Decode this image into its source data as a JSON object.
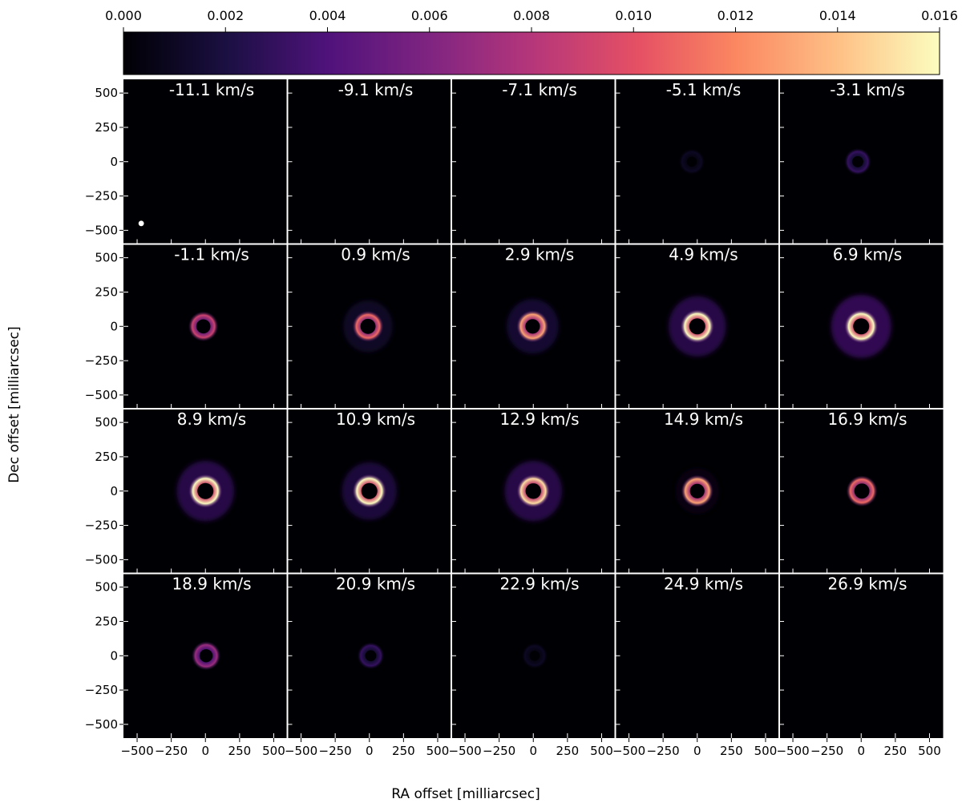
{
  "chart_data": {
    "type": "heatmap",
    "colorbar": {
      "ticks": [
        "0.000",
        "0.002",
        "0.004",
        "0.006",
        "0.008",
        "0.010",
        "0.012",
        "0.014",
        "0.016"
      ],
      "range": [
        0,
        0.016
      ],
      "placement": "top",
      "colormap": "magma"
    },
    "xlabel": "RA offset [milliarcsec]",
    "ylabel": "Dec offset [milliarcsec]",
    "xlim": [
      -600,
      600
    ],
    "ylim": [
      -600,
      600
    ],
    "xticks": [
      -500,
      -250,
      0,
      250,
      500
    ],
    "yticks": [
      500,
      250,
      0,
      -250,
      -500
    ],
    "xtick_labels": [
      "−500",
      "−250",
      "0",
      "250",
      "500"
    ],
    "ytick_labels": [
      "500",
      "250",
      "0",
      "−250",
      "−500"
    ],
    "grid": false,
    "channels": [
      {
        "label": "-11.1 km/s",
        "velocity": -11.1,
        "ring_peak": 0.0,
        "halo": 0.0,
        "offset_x": 0
      },
      {
        "label": "-9.1 km/s",
        "velocity": -9.1,
        "ring_peak": 0.0,
        "halo": 0.0,
        "offset_x": 0
      },
      {
        "label": "-7.1 km/s",
        "velocity": -7.1,
        "ring_peak": 0.0,
        "halo": 0.0,
        "offset_x": 0
      },
      {
        "label": "-5.1 km/s",
        "velocity": -5.1,
        "ring_peak": 0.001,
        "halo": 0.0,
        "offset_x": -40
      },
      {
        "label": "-3.1 km/s",
        "velocity": -3.1,
        "ring_peak": 0.003,
        "halo": 0.0,
        "offset_x": -25
      },
      {
        "label": "-1.1 km/s",
        "velocity": -1.1,
        "ring_peak": 0.009,
        "halo": 0.0,
        "offset_x": -15
      },
      {
        "label": "0.9 km/s",
        "velocity": 0.9,
        "ring_peak": 0.011,
        "halo": 0.0015,
        "offset_x": -10
      },
      {
        "label": "2.9 km/s",
        "velocity": 2.9,
        "ring_peak": 0.013,
        "halo": 0.002,
        "offset_x": -5
      },
      {
        "label": "4.9 km/s",
        "velocity": 4.9,
        "ring_peak": 0.016,
        "halo": 0.003,
        "offset_x": 0
      },
      {
        "label": "6.9 km/s",
        "velocity": 6.9,
        "ring_peak": 0.016,
        "halo": 0.0035,
        "offset_x": 0
      },
      {
        "label": "8.9 km/s",
        "velocity": 8.9,
        "ring_peak": 0.016,
        "halo": 0.003,
        "offset_x": 0
      },
      {
        "label": "10.9 km/s",
        "velocity": 10.9,
        "ring_peak": 0.016,
        "halo": 0.0025,
        "offset_x": 0
      },
      {
        "label": "12.9 km/s",
        "velocity": 12.9,
        "ring_peak": 0.015,
        "halo": 0.003,
        "offset_x": 0
      },
      {
        "label": "14.9 km/s",
        "velocity": 14.9,
        "ring_peak": 0.013,
        "halo": 0.0005,
        "offset_x": 0
      },
      {
        "label": "16.9 km/s",
        "velocity": 16.9,
        "ring_peak": 0.011,
        "halo": 0.0,
        "offset_x": 5
      },
      {
        "label": "18.9 km/s",
        "velocity": 18.9,
        "ring_peak": 0.007,
        "halo": 0.0,
        "offset_x": 5
      },
      {
        "label": "20.9 km/s",
        "velocity": 20.9,
        "ring_peak": 0.003,
        "halo": 0.0,
        "offset_x": 10
      },
      {
        "label": "22.9 km/s",
        "velocity": 22.9,
        "ring_peak": 0.001,
        "halo": 0.0,
        "offset_x": 10
      },
      {
        "label": "24.9 km/s",
        "velocity": 24.9,
        "ring_peak": 0.0,
        "halo": 0.0,
        "offset_x": 0
      },
      {
        "label": "26.9 km/s",
        "velocity": 26.9,
        "ring_peak": 0.0,
        "halo": 0.0,
        "offset_x": 0
      }
    ],
    "beam": {
      "panel": 0,
      "x": -470,
      "y": -450,
      "diameter": 40
    }
  }
}
